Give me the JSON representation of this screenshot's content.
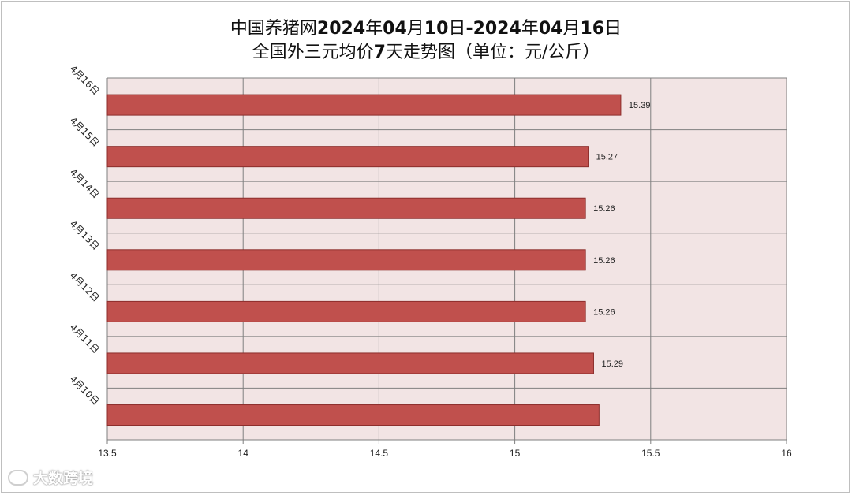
{
  "title_line1_prefix": "中国养猪网",
  "title_line1_bold": "2024",
  "title_line1_rest1": "年",
  "title_line1_bold2": "04",
  "title_line1_rest2": "月",
  "title_line1_bold3": "10",
  "title_line1_rest3": "日",
  "title_line1_bold4": "-2024",
  "title_line1_rest4": "年",
  "title_line1_bold5": "04",
  "title_line1_rest5": "月",
  "title_line1_bold6": "16",
  "title_line1_rest6": "日",
  "title_line2_prefix": "全国外三元均价",
  "title_line2_bold": "7",
  "title_line2_rest": "天走势图（单位：元/公斤）",
  "watermark_text": "大数跨境",
  "colors": {
    "bar": "#c0504d",
    "bar_border": "#8c2d2b",
    "plot_bg": "#f2e4e4",
    "grid": "#7f7f7f"
  },
  "chart_data": {
    "type": "bar",
    "orientation": "horizontal",
    "categories": [
      "4月16日",
      "4月15日",
      "4月14日",
      "4月13日",
      "4月12日",
      "4月11日",
      "4月10日"
    ],
    "series": [
      {
        "values": [
          15.39,
          15.27,
          15.26,
          15.26,
          15.26,
          15.29,
          15.31
        ],
        "labels": [
          "15.39",
          "15.27",
          "15.26",
          "15.26",
          "15.26",
          "15.29",
          ""
        ]
      }
    ],
    "xlim": [
      13.5,
      16
    ],
    "xticks": [
      "13.5",
      "14",
      "14.5",
      "15",
      "15.5",
      "16"
    ],
    "grid": true
  }
}
